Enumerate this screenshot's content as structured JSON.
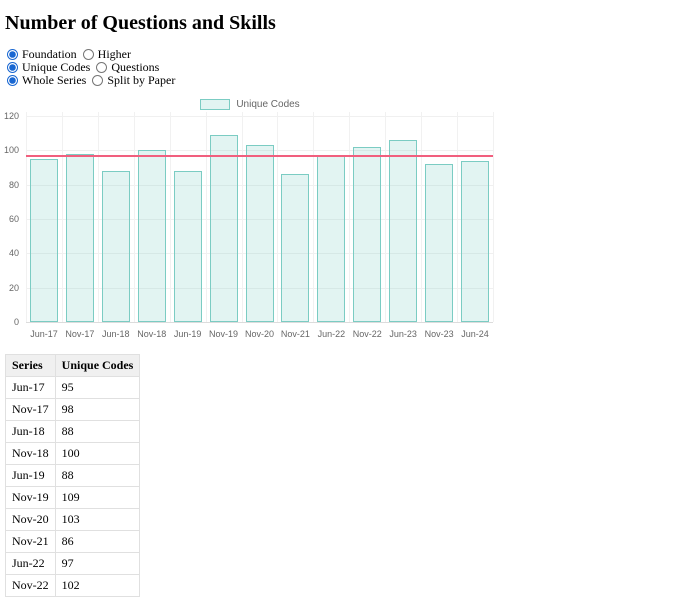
{
  "title": "Number of Questions and Skills",
  "controls": {
    "groups": [
      {
        "name": "tier",
        "options": [
          {
            "label": "Foundation",
            "selected": true
          },
          {
            "label": "Higher",
            "selected": false
          }
        ]
      },
      {
        "name": "metric",
        "options": [
          {
            "label": "Unique Codes",
            "selected": true
          },
          {
            "label": "Questions",
            "selected": false
          }
        ]
      },
      {
        "name": "series-mode",
        "options": [
          {
            "label": "Whole Series",
            "selected": true
          },
          {
            "label": "Split by Paper",
            "selected": false
          }
        ]
      }
    ]
  },
  "chart_data": {
    "type": "bar",
    "title": "",
    "legend": "Unique Codes",
    "legend_position": "top",
    "grid": true,
    "categories": [
      "Jun-17",
      "Nov-17",
      "Jun-18",
      "Nov-18",
      "Jun-19",
      "Nov-19",
      "Nov-20",
      "Nov-21",
      "Jun-22",
      "Nov-22",
      "Jun-23",
      "Nov-23",
      "Jun-24"
    ],
    "values": [
      95,
      98,
      88,
      100,
      88,
      109,
      103,
      86,
      97,
      102,
      106,
      92,
      94
    ],
    "average_line": 96.8,
    "xlabel": "",
    "ylabel": "",
    "ylim": [
      0,
      120
    ],
    "ytick_step": 20,
    "colors": {
      "bar_fill": "rgba(123,204,195,0.22)",
      "bar_border": "#7bccc3",
      "average_line": "#f15f7e",
      "tick_text": "#666666"
    }
  },
  "table": {
    "columns": [
      "Series",
      "Unique Codes"
    ],
    "rows": [
      [
        "Jun-17",
        "95"
      ],
      [
        "Nov-17",
        "98"
      ],
      [
        "Jun-18",
        "88"
      ],
      [
        "Nov-18",
        "100"
      ],
      [
        "Jun-19",
        "88"
      ],
      [
        "Nov-19",
        "109"
      ],
      [
        "Nov-20",
        "103"
      ],
      [
        "Nov-21",
        "86"
      ],
      [
        "Jun-22",
        "97"
      ],
      [
        "Nov-22",
        "102"
      ]
    ]
  }
}
